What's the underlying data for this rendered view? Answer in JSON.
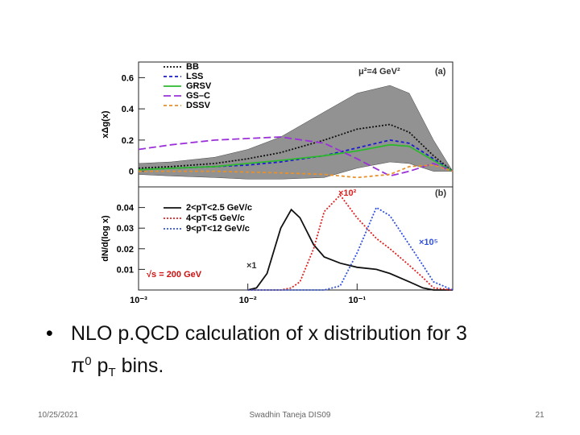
{
  "chart_data": [
    {
      "type": "line",
      "y_label": "xΔg(x)",
      "xscale": "log",
      "xlim": [
        0.001,
        0.75
      ],
      "ylim": [
        -0.1,
        0.7
      ],
      "yticks": [
        0,
        0.2,
        0.4,
        0.6
      ],
      "x": [
        0.001,
        0.002,
        0.005,
        0.01,
        0.02,
        0.05,
        0.1,
        0.2,
        0.3,
        0.5,
        0.75
      ],
      "band": {
        "color": "#6e6e6e",
        "upper": [
          0.05,
          0.06,
          0.09,
          0.14,
          0.22,
          0.38,
          0.5,
          0.55,
          0.5,
          0.2,
          0.0
        ],
        "lower": [
          -0.02,
          -0.03,
          -0.04,
          -0.05,
          -0.05,
          -0.04,
          0.02,
          0.06,
          0.05,
          0.0,
          0.0
        ]
      },
      "series": [
        {
          "name": "BB",
          "color": "#111111",
          "style": "dotted",
          "values": [
            0.02,
            0.03,
            0.05,
            0.08,
            0.12,
            0.2,
            0.27,
            0.3,
            0.25,
            0.1,
            0.0
          ]
        },
        {
          "name": "LSS",
          "color": "#1a1ad0",
          "style": "dashed",
          "values": [
            0.01,
            0.02,
            0.03,
            0.04,
            0.06,
            0.1,
            0.15,
            0.2,
            0.18,
            0.08,
            0.0
          ]
        },
        {
          "name": "GRSV",
          "color": "#2eb82e",
          "style": "solid",
          "values": [
            0.01,
            0.02,
            0.03,
            0.05,
            0.07,
            0.1,
            0.13,
            0.17,
            0.16,
            0.07,
            0.0
          ]
        },
        {
          "name": "GS–C",
          "color": "#9b30d9",
          "style": "longdash",
          "values": [
            0.14,
            0.17,
            0.2,
            0.21,
            0.22,
            0.18,
            0.08,
            -0.03,
            0.0,
            0.05,
            0.0
          ]
        },
        {
          "name": "DSSV",
          "color": "#e8902a",
          "style": "dashed",
          "values": [
            0.0,
            0.0,
            0.0,
            -0.005,
            -0.01,
            -0.02,
            -0.04,
            -0.02,
            0.03,
            0.04,
            0.0
          ]
        }
      ],
      "annotations": [
        "μ²=4 GeV²",
        "(a)"
      ]
    },
    {
      "type": "line",
      "y_label": "dN/d(log x)",
      "xscale": "log",
      "xlim": [
        0.001,
        0.75
      ],
      "ylim": [
        0,
        0.05
      ],
      "yticks": [
        0.01,
        0.02,
        0.03,
        0.04
      ],
      "xticks": [
        {
          "value": 0.001,
          "label": "10⁻³"
        },
        {
          "value": 0.01,
          "label": "10⁻²"
        },
        {
          "value": 0.1,
          "label": "10⁻¹"
        }
      ],
      "x": [
        0.01,
        0.012,
        0.015,
        0.02,
        0.025,
        0.03,
        0.04,
        0.05,
        0.07,
        0.1,
        0.15,
        0.2,
        0.3,
        0.4,
        0.5,
        0.75
      ],
      "series": [
        {
          "name": "2<pT<2.5 GeV/c",
          "color": "#111111",
          "style": "solid",
          "values": [
            0,
            0.001,
            0.008,
            0.03,
            0.039,
            0.035,
            0.022,
            0.016,
            0.013,
            0.011,
            0.01,
            0.008,
            0.004,
            0.001,
            0,
            0
          ]
        },
        {
          "name": "4<pT<5 GeV/c",
          "color": "#e02020",
          "style": "dotted",
          "values": [
            0,
            0,
            0,
            0,
            0.001,
            0.004,
            0.02,
            0.038,
            0.046,
            0.035,
            0.025,
            0.02,
            0.012,
            0.006,
            0.001,
            0
          ]
        },
        {
          "name": "9<pT<12 GeV/c",
          "color": "#3050e0",
          "style": "dotted",
          "values": [
            0,
            0,
            0,
            0,
            0,
            0,
            0,
            0,
            0.002,
            0.018,
            0.04,
            0.036,
            0.022,
            0.012,
            0.004,
            0
          ]
        }
      ],
      "annotations": [
        "×1",
        "×10²",
        "×10⁵",
        "√s = 200 GeV",
        "(b)"
      ]
    }
  ],
  "slide": {
    "bullet": {
      "line1": "NLO p.QCD calculation of x distribution for 3",
      "line2": [
        "π",
        "0",
        " p",
        "T",
        " bins."
      ]
    },
    "footer": {
      "date": "10/25/2021",
      "author": "Swadhin Taneja DIS09",
      "page": "21"
    }
  }
}
